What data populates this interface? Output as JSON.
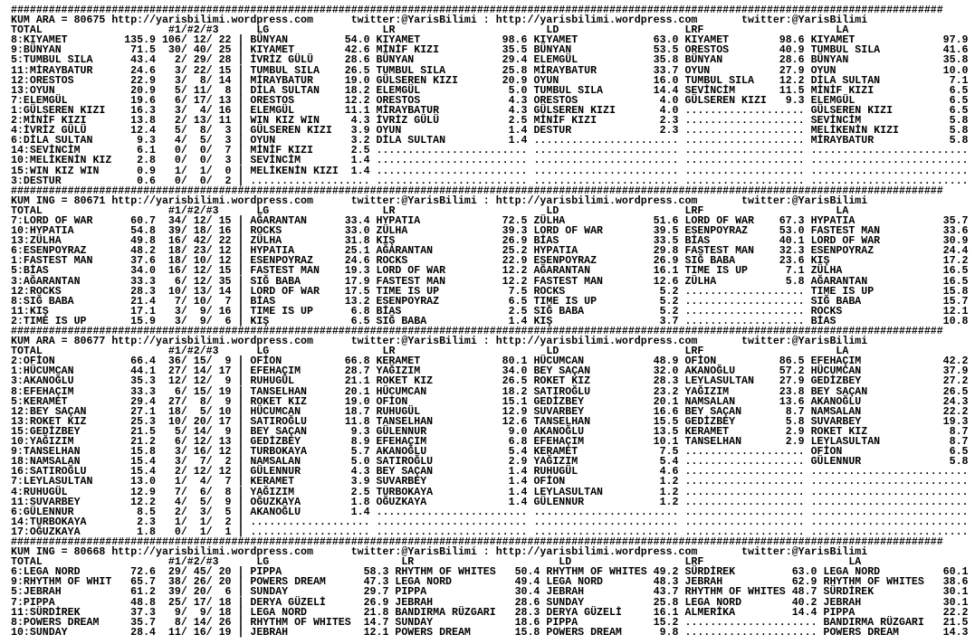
{
  "separator": "####################################################################################################################################################",
  "sections": [
    {
      "header": "KUM ARA = 80675 http://yarisbilimi.wordpress.com      twitter:@YarisBilimi : http://yarisbilimi.wordpress.com       twitter:@YarisBilimi",
      "total_label": "TOTAL",
      "counts_label": "#1/#2/#3",
      "labels": {
        "lg": "LG",
        "lr": "LR",
        "ld": "LD",
        "lrf": "LRF",
        "la": "LA"
      },
      "totals": [
        [
          "8:KIYAMET",
          "135.9",
          "106",
          "12",
          "22"
        ],
        [
          "9:BÜNYAN",
          "71.5",
          "30",
          "40",
          "25"
        ],
        [
          "5:TUMBUL SILA",
          "43.4",
          "2",
          "29",
          "28"
        ],
        [
          "11:MİRAYBATUR",
          "24.6",
          "3",
          "22",
          "15"
        ],
        [
          "12:ORESTOS",
          "22.9",
          "3",
          "8",
          "14"
        ],
        [
          "13:OYUN",
          "20.9",
          "5",
          "11",
          "8"
        ],
        [
          "7:ELEMGÜL",
          "19.6",
          "6",
          "17",
          "13"
        ],
        [
          "1:GÜLSEREN KIZI",
          "16.3",
          "3",
          "4",
          "16"
        ],
        [
          "2:MİNİF KIZI",
          "13.8",
          "2",
          "13",
          "11"
        ],
        [
          "4:İVRİZ GÜLÜ",
          "12.4",
          "5",
          "8",
          "3"
        ],
        [
          "6:DİLA SULTAN",
          "9.3",
          "4",
          "5",
          "3"
        ],
        [
          "14:SEVİNCİM",
          "6.1",
          "0",
          "0",
          "7"
        ],
        [
          "10:MELİKENİN KIZ",
          "2.8",
          "0",
          "0",
          "3"
        ],
        [
          "15:WIN KIZ WIN",
          "0.9",
          "1",
          "1",
          "0"
        ],
        [
          "3:DESTUR",
          "0.6",
          "0",
          "0",
          "2"
        ]
      ],
      "lg": [
        [
          "BÜNYAN",
          "54.0"
        ],
        [
          "KIYAMET",
          "42.6"
        ],
        [
          "İVRİZ GÜLÜ",
          "28.6"
        ],
        [
          "TUMBUL SILA",
          "26.5"
        ],
        [
          "MİRAYBATUR",
          "19.0"
        ],
        [
          "DİLA SULTAN",
          "18.2"
        ],
        [
          "ORESTOS",
          "12.2"
        ],
        [
          "ELEMGÜL",
          "11.1"
        ],
        [
          "WIN KIZ WIN",
          "4.3"
        ],
        [
          "GÜLSEREN KIZI",
          "3.9"
        ],
        [
          "OYUN",
          "3.2"
        ],
        [
          "MİNİF KIZI",
          "2.5"
        ],
        [
          "SEVİNCİM",
          "1.4"
        ],
        [
          "MELİKENİN KIZI",
          "1.4"
        ]
      ],
      "lr": [
        [
          "KIYAMET",
          "98.6"
        ],
        [
          "MİNİF KIZI",
          "35.5"
        ],
        [
          "BÜNYAN",
          "29.4"
        ],
        [
          "TUMBUL SILA",
          "25.8"
        ],
        [
          "GÜLSEREN KIZI",
          "20.9"
        ],
        [
          "ELEMGÜL",
          "5.0"
        ],
        [
          "ORESTOS",
          "4.3"
        ],
        [
          "MİRAYBATUR",
          "4.3"
        ],
        [
          "İVRİZ GÜLÜ",
          "2.5"
        ],
        [
          "OYUN",
          "1.4"
        ],
        [
          "DİLA SULTAN",
          "1.4"
        ]
      ],
      "ld": [
        [
          "KIYAMET",
          "63.0"
        ],
        [
          "BÜNYAN",
          "53.5"
        ],
        [
          "ELEMGÜL",
          "35.8"
        ],
        [
          "MİRAYBATUR",
          "33.7"
        ],
        [
          "OYUN",
          "16.0"
        ],
        [
          "TUMBUL SILA",
          "14.4"
        ],
        [
          "ORESTOS",
          "4.0"
        ],
        [
          "GÜLSEREN KIZI",
          "4.0"
        ],
        [
          "MİNİF KIZI",
          "2.3"
        ],
        [
          "DESTUR",
          "2.3"
        ]
      ],
      "lrf": [
        [
          "KIYAMET",
          "98.6"
        ],
        [
          "ORESTOS",
          "40.9"
        ],
        [
          "BÜNYAN",
          "28.6"
        ],
        [
          "OYUN",
          "27.9"
        ],
        [
          "TUMBUL SILA",
          "12.2"
        ],
        [
          "SEVİNCİM",
          "11.5"
        ],
        [
          "GÜLSEREN KIZI",
          "9.3"
        ]
      ],
      "la": [
        [
          "KIYAMET",
          "97.9"
        ],
        [
          "TUMBUL SILA",
          "41.6"
        ],
        [
          "BÜNYAN",
          "35.8"
        ],
        [
          "OYUN",
          "10.0"
        ],
        [
          "DİLA SULTAN",
          "7.1"
        ],
        [
          "MİNİF KIZI",
          "6.5"
        ],
        [
          "ELEMGÜL",
          "6.5"
        ],
        [
          "GÜLSEREN KIZI",
          "6.5"
        ],
        [
          "SEVİNCİM",
          "5.8"
        ],
        [
          "MELİKENİN KIZI",
          "5.8"
        ],
        [
          "MİRAYBATUR",
          "5.8"
        ]
      ]
    },
    {
      "header": "KUM ING = 80671 http://yarisbilimi.wordpress.com      twitter:@YarisBilimi : http://yarisbilimi.wordpress.com       twitter:@YarisBilimi",
      "total_label": "TOTAL",
      "counts_label": "#1/#2/#3",
      "labels": {
        "lg": "LG",
        "lr": "LR",
        "ld": "LD",
        "lrf": "LRF",
        "la": "LA"
      },
      "totals": [
        [
          "7:LORD OF WAR",
          "60.7",
          "34",
          "12",
          "15"
        ],
        [
          "10:HYPATIA",
          "54.8",
          "39",
          "18",
          "16"
        ],
        [
          "13:ZÜLHA",
          "49.8",
          "16",
          "42",
          "22"
        ],
        [
          "6:ESENPOYRAZ",
          "48.2",
          "18",
          "23",
          "12"
        ],
        [
          "1:FASTEST MAN",
          "37.6",
          "18",
          "10",
          "12"
        ],
        [
          "5:BİAS",
          "34.0",
          "16",
          "12",
          "15"
        ],
        [
          "3:AĞARANTAN",
          "33.3",
          "6",
          "12",
          "35"
        ],
        [
          "12:ROCKS",
          "28.3",
          "10",
          "13",
          "14"
        ],
        [
          "8:SIĞ BABA",
          "21.4",
          "7",
          "10",
          "7"
        ],
        [
          "11:KIŞ",
          "17.1",
          "3",
          "9",
          "16"
        ],
        [
          "2:TIME IS UP",
          "15.9",
          "3",
          "9",
          "6"
        ]
      ],
      "lg": [
        [
          "AĞARANTAN",
          "33.4"
        ],
        [
          "ROCKS",
          "33.0"
        ],
        [
          "ZÜLHA",
          "31.8"
        ],
        [
          "HYPATIA",
          "25.1"
        ],
        [
          "ESENPOYRAZ",
          "24.6"
        ],
        [
          "FASTEST MAN",
          "19.3"
        ],
        [
          "SIĞ BABA",
          "17.9"
        ],
        [
          "LORD OF WAR",
          "17.5"
        ],
        [
          "BİAS",
          "13.2"
        ],
        [
          "TIME IS UP",
          "6.8"
        ],
        [
          "KIŞ",
          "6.5"
        ]
      ],
      "lr": [
        [
          "HYPATIA",
          "72.5"
        ],
        [
          "ZÜLHA",
          "39.3"
        ],
        [
          "KIŞ",
          "26.9"
        ],
        [
          "AĞARANTAN",
          "25.2"
        ],
        [
          "ROCKS",
          "22.9"
        ],
        [
          "LORD OF WAR",
          "12.2"
        ],
        [
          "FASTEST MAN",
          "12.2"
        ],
        [
          "TIME IS UP",
          "7.5"
        ],
        [
          "ESENPOYRAZ",
          "6.5"
        ],
        [
          "BİAS",
          "2.5"
        ],
        [
          "SIĞ BABA",
          "1.4"
        ]
      ],
      "ld": [
        [
          "ZÜLHA",
          "51.6"
        ],
        [
          "LORD OF WAR",
          "39.5"
        ],
        [
          "BİAS",
          "33.5"
        ],
        [
          "HYPATIA",
          "29.8"
        ],
        [
          "ESENPOYRAZ",
          "26.9"
        ],
        [
          "AĞARANTAN",
          "16.1"
        ],
        [
          "FASTEST MAN",
          "12.6"
        ],
        [
          "ROCKS",
          "5.2"
        ],
        [
          "TIME IS UP",
          "5.2"
        ],
        [
          "SIĞ BABA",
          "5.2"
        ],
        [
          "KIŞ",
          "3.7"
        ]
      ],
      "lrf": [
        [
          "LORD OF WAR",
          "67.3"
        ],
        [
          "ESENPOYRAZ",
          "53.0"
        ],
        [
          "BİAS",
          "40.1"
        ],
        [
          "FASTEST MAN",
          "32.3"
        ],
        [
          "SIĞ BABA",
          "23.6"
        ],
        [
          "TIME IS UP",
          "7.1"
        ],
        [
          "ZÜLHA",
          "5.8"
        ]
      ],
      "la": [
        [
          "HYPATIA",
          "35.7"
        ],
        [
          "FASTEST MAN",
          "33.6"
        ],
        [
          "LORD OF WAR",
          "30.9"
        ],
        [
          "ESENPOYRAZ",
          "24.4"
        ],
        [
          "KIŞ",
          "17.2"
        ],
        [
          "ZÜLHA",
          "16.5"
        ],
        [
          "AĞARANTAN",
          "16.5"
        ],
        [
          "TIME IS UP",
          "15.8"
        ],
        [
          "SIĞ BABA",
          "15.7"
        ],
        [
          "ROCKS",
          "12.1"
        ],
        [
          "BİAS",
          "10.8"
        ]
      ]
    },
    {
      "header": "KUM ARA = 80677 http://yarisbilimi.wordpress.com      twitter:@YarisBilimi : http://yarisbilimi.wordpress.com       twitter:@YarisBilimi",
      "total_label": "TOTAL",
      "counts_label": "#1/#2/#3",
      "labels": {
        "lg": "LG",
        "lr": "LR",
        "ld": "LD",
        "lrf": "LRF",
        "la": "LA"
      },
      "totals": [
        [
          "2:OFİON",
          "66.4",
          "36",
          "15",
          "9"
        ],
        [
          "1:HÜCUMCAN",
          "44.1",
          "27",
          "14",
          "17"
        ],
        [
          "3:AKANOĞLU",
          "35.3",
          "12",
          "12",
          "9"
        ],
        [
          "8:EFEHAÇIM",
          "33.3",
          "6",
          "15",
          "19"
        ],
        [
          "5:KERAMET",
          "29.4",
          "27",
          "8",
          "9"
        ],
        [
          "12:BEY SAÇAN",
          "27.1",
          "18",
          "5",
          "10"
        ],
        [
          "13:ROKET KIZ",
          "25.3",
          "10",
          "20",
          "17"
        ],
        [
          "15:GEDİZBEY",
          "21.5",
          "5",
          "14",
          "9"
        ],
        [
          "10:YAĞIZIM",
          "21.2",
          "6",
          "12",
          "13"
        ],
        [
          "9:TANSELHAN",
          "15.8",
          "3",
          "16",
          "12"
        ],
        [
          "18:NAMSALAN",
          "15.4",
          "3",
          "7",
          "2"
        ],
        [
          "16:SATIROĞLU",
          "15.4",
          "2",
          "12",
          "12"
        ],
        [
          "7:LEYLASULTAN",
          "13.0",
          "1",
          "4",
          "7"
        ],
        [
          "4:RUHUGÜL",
          "12.9",
          "7",
          "6",
          "8"
        ],
        [
          "11:SUVARBEY",
          "12.2",
          "4",
          "5",
          "9"
        ],
        [
          "6:GÜLENNUR",
          "8.5",
          "2",
          "3",
          "5"
        ],
        [
          "14:TURBOKAYA",
          "2.3",
          "1",
          "1",
          "2"
        ],
        [
          "17:OĞUZKAYA",
          "1.8",
          "0",
          "1",
          "1"
        ]
      ],
      "lg": [
        [
          "OFİON",
          "66.8"
        ],
        [
          "EFEHAÇIM",
          "28.7"
        ],
        [
          "RUHUGÜL",
          "21.1"
        ],
        [
          "TANSELHAN",
          "20.1"
        ],
        [
          "ROKET KIZ",
          "19.0"
        ],
        [
          "HÜCUMCAN",
          "18.7"
        ],
        [
          "SATIROĞLU",
          "11.8"
        ],
        [
          "BEY SAÇAN",
          "9.3"
        ],
        [
          "GEDİZBEY",
          "8.9"
        ],
        [
          "TURBOKAYA",
          "5.7"
        ],
        [
          "NAMSALAN",
          "5.0"
        ],
        [
          "GÜLENNUR",
          "4.3"
        ],
        [
          "KERAMET",
          "3.9"
        ],
        [
          "YAĞIZIM",
          "2.5"
        ],
        [
          "OĞUZKAYA",
          "1.8"
        ],
        [
          "AKANOĞLU",
          "1.4"
        ]
      ],
      "lr": [
        [
          "KERAMET",
          "80.1"
        ],
        [
          "YAĞIZIM",
          "34.0"
        ],
        [
          "ROKET KIZ",
          "26.5"
        ],
        [
          "HÜCUMCAN",
          "18.2"
        ],
        [
          "OFİON",
          "15.1"
        ],
        [
          "RUHUGÜL",
          "12.9"
        ],
        [
          "TANSELHAN",
          "12.6"
        ],
        [
          "GÜLENNUR",
          "9.0"
        ],
        [
          "EFEHAÇIM",
          "6.8"
        ],
        [
          "AKANOĞLU",
          "5.4"
        ],
        [
          "SATIROĞLU",
          "2.9"
        ],
        [
          "BEY SAÇAN",
          "1.4"
        ],
        [
          "SUVARBEY",
          "1.4"
        ],
        [
          "TURBOKAYA",
          "1.4"
        ],
        [
          "OĞUZKAYA",
          "1.4"
        ]
      ],
      "ld": [
        [
          "HÜCUMCAN",
          "48.9"
        ],
        [
          "BEY SAÇAN",
          "32.0"
        ],
        [
          "ROKET KIZ",
          "28.3"
        ],
        [
          "SATIROĞLU",
          "23.2"
        ],
        [
          "GEDİZBEY",
          "20.1"
        ],
        [
          "SUVARBEY",
          "16.6"
        ],
        [
          "TANSELHAN",
          "15.5"
        ],
        [
          "AKANOĞLU",
          "13.5"
        ],
        [
          "EFEHAÇIM",
          "10.1"
        ],
        [
          "KERAMET",
          "7.5"
        ],
        [
          "YAĞIZIM",
          "5.4"
        ],
        [
          "RUHUGÜL",
          "4.6"
        ],
        [
          "OFİON",
          "1.2"
        ],
        [
          "LEYLASULTAN",
          "1.2"
        ],
        [
          "GÜLENNUR",
          "1.2"
        ]
      ],
      "lrf": [
        [
          "OFİON",
          "86.5"
        ],
        [
          "AKANOĞLU",
          "57.2"
        ],
        [
          "LEYLASULTAN",
          "27.9"
        ],
        [
          "YAĞIZIM",
          "23.8"
        ],
        [
          "NAMSALAN",
          "13.6"
        ],
        [
          "BEY SAÇAN",
          "8.7"
        ],
        [
          "GEDİZBEY",
          "5.8"
        ],
        [
          "KERAMET",
          "2.9"
        ],
        [
          "TANSELHAN",
          "2.9"
        ]
      ],
      "la": [
        [
          "EFEHAÇIM",
          "42.2"
        ],
        [
          "HÜCUMCAN",
          "37.9"
        ],
        [
          "GEDİZBEY",
          "27.2"
        ],
        [
          "BEY SAÇAN",
          "26.5"
        ],
        [
          "AKANOĞLU",
          "24.3"
        ],
        [
          "NAMSALAN",
          "22.2"
        ],
        [
          "SUVARBEY",
          "19.3"
        ],
        [
          "ROKET KIZ",
          "8.7"
        ],
        [
          "LEYLASULTAN",
          "8.7"
        ],
        [
          "OFİON",
          "6.5"
        ],
        [
          "GÜLENNUR",
          "5.8"
        ]
      ]
    },
    {
      "header": "KUM ING = 80668 http://yarisbilimi.wordpress.com      twitter:@YarisBilimi : http://yarisbilimi.wordpress.com       twitter:@YarisBilimi",
      "total_label": "TOTAL",
      "counts_label": "#1/#2/#3",
      "labels": {
        "lg": "LG",
        "lr": "LR",
        "ld": "LD",
        "lrf": "LRF",
        "la": "LA"
      },
      "totals": [
        [
          "6:LEGA NORD",
          "72.6",
          "29",
          "45",
          "20"
        ],
        [
          "9:RHYTHM OF WHIT",
          "65.7",
          "38",
          "26",
          "20"
        ],
        [
          "5:JEBRAH",
          "61.2",
          "39",
          "20",
          "6"
        ],
        [
          "7:PIPPA",
          "48.8",
          "25",
          "17",
          "18"
        ],
        [
          "11:SÜRDİREK",
          "37.3",
          "9",
          "9",
          "18"
        ],
        [
          "8:POWERS DREAM",
          "35.7",
          "8",
          "14",
          "26"
        ],
        [
          "10:SUNDAY",
          "28.4",
          "11",
          "16",
          "19"
        ]
      ],
      "lg": [
        [
          "PIPPA",
          "58.3"
        ],
        [
          "POWERS DREAM",
          "47.3"
        ],
        [
          "SUNDAY",
          "29.7"
        ],
        [
          "DERYA GÜZELİ",
          "26.9"
        ],
        [
          "LEGA NORD",
          "21.8"
        ],
        [
          "RHYTHM OF WHITES",
          "14.7"
        ],
        [
          "JEBRAH",
          "12.1"
        ]
      ],
      "lr": [
        [
          "RHYTHM OF WHITES",
          "50.4"
        ],
        [
          "LEGA NORD",
          "49.4"
        ],
        [
          "PIPPA",
          "30.4"
        ],
        [
          "JEBRAH",
          "28.6"
        ],
        [
          "BANDIRMA RÜZGARI",
          "28.3"
        ],
        [
          "SUNDAY",
          "18.6"
        ],
        [
          "POWERS DREAM",
          "15.8"
        ]
      ],
      "ld": [
        [
          "RHYTHM OF WHITES",
          "49.2"
        ],
        [
          "LEGA NORD",
          "48.3"
        ],
        [
          "JEBRAH",
          "43.7"
        ],
        [
          "SUNDAY",
          "25.8"
        ],
        [
          "DERYA GÜZELİ",
          "16.1"
        ],
        [
          "PIPPA",
          "15.2"
        ],
        [
          "POWERS DREAM",
          "9.8"
        ]
      ],
      "lrf": [
        [
          "SÜRDİREK",
          "63.0"
        ],
        [
          "JEBRAH",
          "62.9"
        ],
        [
          "RHYTHM OF WHITES",
          "48.7"
        ],
        [
          "LEGA NORD",
          "40.2"
        ],
        [
          "ALMERİKA",
          "14.4"
        ]
      ],
      "la": [
        [
          "LEGA NORD",
          "60.1"
        ],
        [
          "RHYTHM OF WHITES",
          "38.6"
        ],
        [
          "SÜRDİREK",
          "30.1"
        ],
        [
          "JEBRAH",
          "30.1"
        ],
        [
          "PIPPA",
          "22.2"
        ],
        [
          "BANDIRMA RÜZGARI",
          "21.5"
        ],
        [
          "POWERS DREAM",
          "14.3"
        ]
      ]
    }
  ]
}
